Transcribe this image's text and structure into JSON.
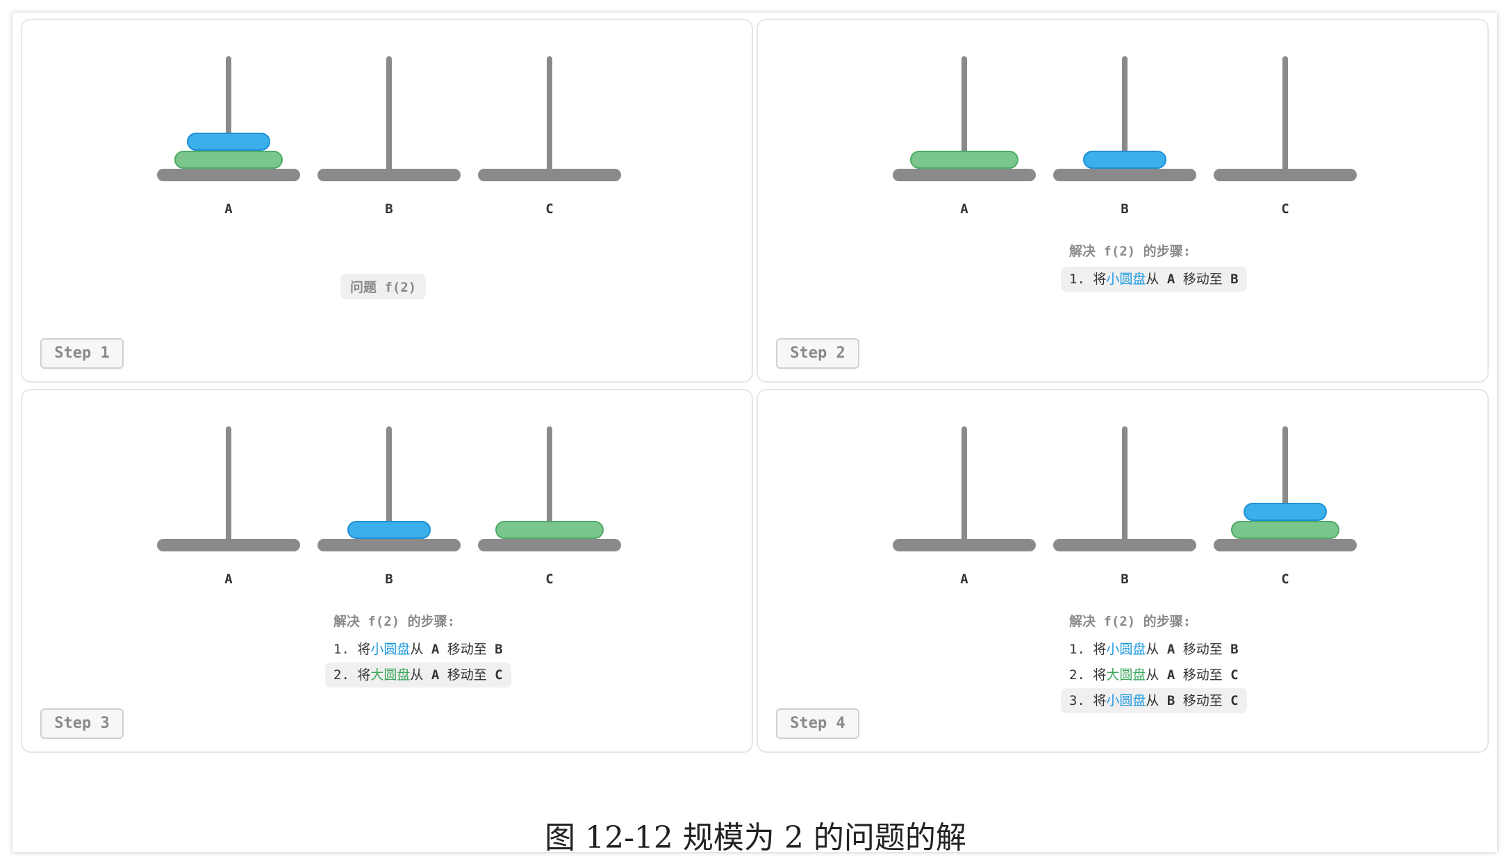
{
  "colors": {
    "small_disk_fill": "#3aafe9",
    "small_disk_stroke": "#1e8fd6",
    "large_disk_fill": "#7bc68d",
    "large_disk_stroke": "#4faa69",
    "peg": "#8a8a8a"
  },
  "pegs": [
    "A",
    "B",
    "C"
  ],
  "disk_names": {
    "small": "小圆盘",
    "large": "大圆盘"
  },
  "words": {
    "step": "将",
    "from": "从",
    "move_to": "移动至"
  },
  "panels": [
    {
      "step_label": "Step 1",
      "disks": {
        "A": [
          "large",
          "small"
        ],
        "B": [],
        "C": []
      },
      "problem_label": "问题 f(2)",
      "steps_title": "",
      "steps": []
    },
    {
      "step_label": "Step 2",
      "disks": {
        "A": [
          "large"
        ],
        "B": [
          "small"
        ],
        "C": []
      },
      "problem_label": "",
      "steps_title": "解决 f(2) 的步骤:",
      "steps": [
        {
          "num": "1.",
          "disk": "small",
          "from": "A",
          "to": "B",
          "highlighted": true
        }
      ]
    },
    {
      "step_label": "Step 3",
      "disks": {
        "A": [],
        "B": [
          "small"
        ],
        "C": [
          "large"
        ]
      },
      "problem_label": "",
      "steps_title": "解决 f(2) 的步骤:",
      "steps": [
        {
          "num": "1.",
          "disk": "small",
          "from": "A",
          "to": "B",
          "highlighted": false
        },
        {
          "num": "2.",
          "disk": "large",
          "from": "A",
          "to": "C",
          "highlighted": true
        }
      ]
    },
    {
      "step_label": "Step 4",
      "disks": {
        "A": [],
        "B": [],
        "C": [
          "large",
          "small"
        ]
      },
      "problem_label": "",
      "steps_title": "解决 f(2) 的步骤:",
      "steps": [
        {
          "num": "1.",
          "disk": "small",
          "from": "A",
          "to": "B",
          "highlighted": false
        },
        {
          "num": "2.",
          "disk": "large",
          "from": "A",
          "to": "C",
          "highlighted": false
        },
        {
          "num": "3.",
          "disk": "small",
          "from": "B",
          "to": "C",
          "highlighted": true
        }
      ]
    }
  ],
  "caption": "图 12-12   规模为 2 的问题的解"
}
